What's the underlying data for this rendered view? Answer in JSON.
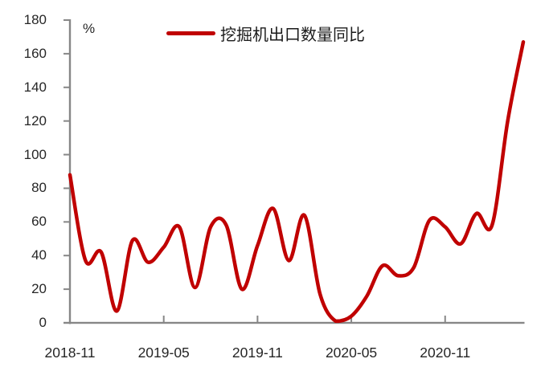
{
  "chart_data": {
    "type": "line",
    "title": "",
    "ylabel": "%",
    "xlabel": "",
    "ylim": [
      0,
      180
    ],
    "y_tick_step": 20,
    "y_ticks": [
      0,
      20,
      40,
      60,
      80,
      100,
      120,
      140,
      160,
      180
    ],
    "grid": "off",
    "legend_position": "top-center",
    "x": [
      "2018-11",
      "2018-12",
      "2019-01",
      "2019-02",
      "2019-03",
      "2019-04",
      "2019-05",
      "2019-06",
      "2019-07",
      "2019-08",
      "2019-09",
      "2019-10",
      "2019-11",
      "2019-12",
      "2020-01",
      "2020-02",
      "2020-03",
      "2020-04",
      "2020-05",
      "2020-06",
      "2020-07",
      "2020-08",
      "2020-09",
      "2020-10",
      "2020-11",
      "2020-12",
      "2021-01",
      "2021-02",
      "2021-03",
      "2021-04"
    ],
    "x_tick_labels": [
      "2018-11",
      "2019-05",
      "2019-11",
      "2020-05",
      "2020-11"
    ],
    "x_tick_indices": [
      0,
      6,
      12,
      18,
      24
    ],
    "series": [
      {
        "name": "挖掘机出口数量同比",
        "color": "#C00000",
        "values": [
          88,
          37,
          42,
          7,
          49,
          36,
          45,
          57,
          21,
          57,
          58,
          20,
          46,
          68,
          37,
          64,
          17,
          1,
          4,
          16,
          34,
          28,
          33,
          61,
          57,
          47,
          65,
          58,
          120,
          167
        ]
      }
    ]
  },
  "colors": {
    "axis": "#878787",
    "tick": "#878787",
    "text": "#262626",
    "line": "#C00000",
    "background": "#ffffff"
  }
}
